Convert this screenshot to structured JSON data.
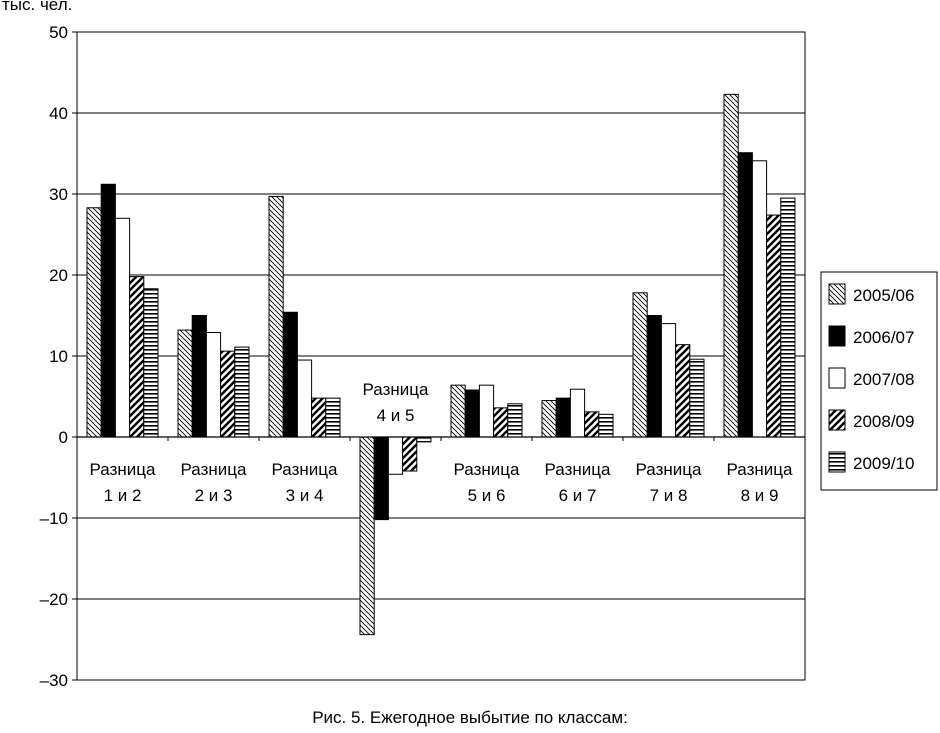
{
  "chart_data": {
    "type": "bar",
    "y_unit_label": "тыс. чел.",
    "caption": "Рис. 5. Ежегодное выбытие по классам:",
    "ylim": [
      -30,
      50
    ],
    "yticks": [
      "50",
      "40",
      "30",
      "20",
      "10",
      "0",
      "–10",
      "–20",
      "–30"
    ],
    "ytick_values": [
      50,
      40,
      30,
      20,
      10,
      0,
      -10,
      -20,
      -30
    ],
    "grid": true,
    "legend_position": "right",
    "categories": [
      [
        "Разница",
        "1 и 2"
      ],
      [
        "Разница",
        "2 и 3"
      ],
      [
        "Разница",
        "3 и 4"
      ],
      [
        "Разница",
        "4 и 5"
      ],
      [
        "Разница",
        "5 и 6"
      ],
      [
        "Разница",
        "6 и 7"
      ],
      [
        "Разница",
        "7 и 8"
      ],
      [
        "Разница",
        "8 и 9"
      ]
    ],
    "series": [
      {
        "name": "2005/06",
        "pattern": "backslash-hatch",
        "values": [
          28.3,
          13.2,
          29.7,
          -24.4,
          6.4,
          4.5,
          17.8,
          42.3
        ]
      },
      {
        "name": "2006/07",
        "pattern": "solid-black",
        "values": [
          31.2,
          15.0,
          15.4,
          -10.2,
          5.8,
          4.8,
          15.0,
          35.1
        ]
      },
      {
        "name": "2007/08",
        "pattern": "white",
        "values": [
          27.0,
          12.9,
          9.5,
          -4.6,
          6.4,
          5.9,
          14.0,
          34.1
        ]
      },
      {
        "name": "2008/09",
        "pattern": "bold-slash-hatch",
        "values": [
          19.8,
          10.6,
          4.8,
          -4.2,
          3.6,
          3.1,
          11.4,
          27.4
        ]
      },
      {
        "name": "2009/10",
        "pattern": "horizontal-lines",
        "values": [
          18.3,
          11.1,
          4.8,
          -0.6,
          4.1,
          2.8,
          9.6,
          29.5
        ]
      }
    ]
  }
}
